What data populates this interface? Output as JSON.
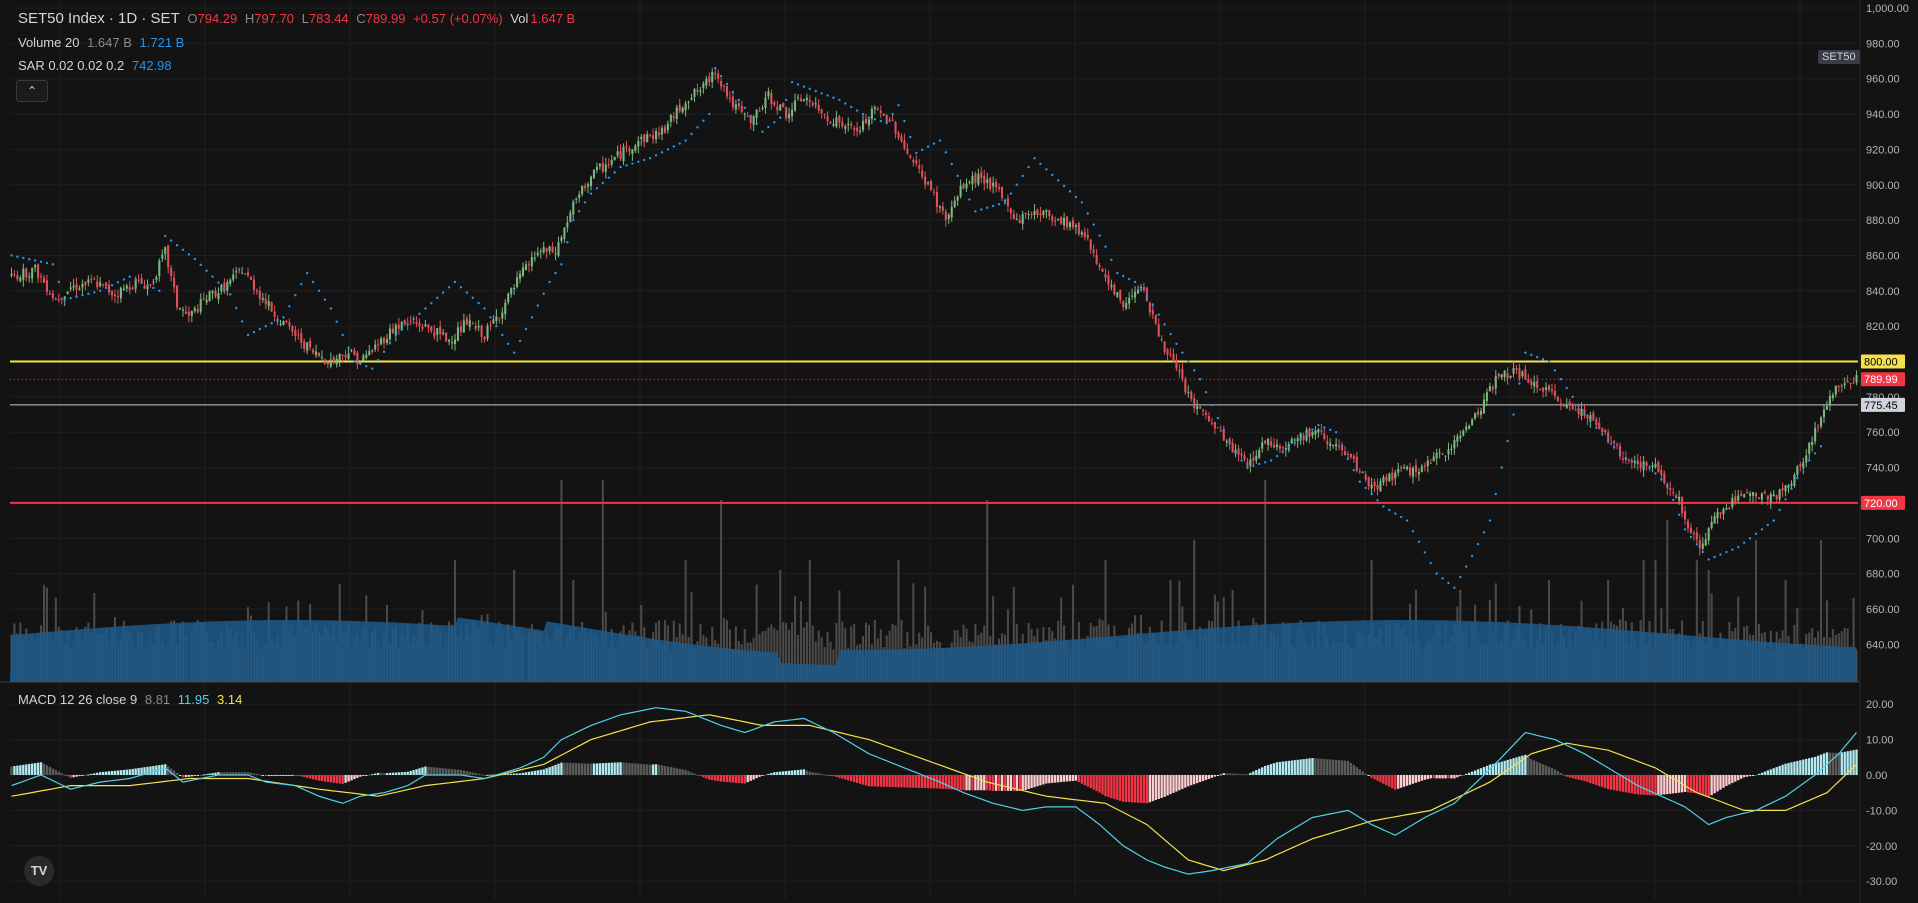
{
  "header": {
    "symbol": "SET50 Index · 1D · SET",
    "o_label": "O",
    "o_value": "794.29",
    "h_label": "H",
    "h_value": "797.70",
    "l_label": "L",
    "l_value": "783.44",
    "c_label": "C",
    "c_value": "789.99",
    "change": "+0.57 (+0.07%)",
    "vol_label": "Vol",
    "vol_value": "1.647 B"
  },
  "volume_legend": {
    "label": "Volume 20",
    "v1": "1.647 B",
    "v2": "1.721 B"
  },
  "sar_legend": {
    "label": "SAR 0.02 0.02 0.2",
    "value": "742.98"
  },
  "macd_legend": {
    "label": "MACD 12 26 close 9",
    "hist": "8.81",
    "macd": "11.95",
    "signal": "3.14"
  },
  "collapse_glyph": "⌃",
  "symbol_tag": "SET50",
  "logo_text": "TV",
  "colors": {
    "background": "#131313",
    "grid": "#1f1f1f",
    "up": "#26a69a",
    "down": "#f23645",
    "candle_up": "#7cb87f",
    "candle_down": "#e0525b",
    "sar": "#2196f3",
    "volume_bar": "#4a4a4a",
    "volume_ma": "#1f5a8a",
    "line_800": "#f5e24a",
    "line_720": "#f23645",
    "line_775": "#c9c9c9",
    "macd_line": "#4fd1e6",
    "signal_line": "#f5e24a"
  },
  "price_axis": {
    "ticks": [
      "1,000.00",
      "980.00",
      "960.00",
      "940.00",
      "920.00",
      "900.00",
      "880.00",
      "860.00",
      "840.00",
      "820.00",
      "800.00",
      "780.00",
      "760.00",
      "740.00",
      "720.00",
      "700.00",
      "680.00",
      "660.00",
      "640.00"
    ],
    "markers": [
      {
        "label": "800.00",
        "value": 800,
        "color": "#f5e24a",
        "text_color": "#000"
      },
      {
        "label": "789.99",
        "value": 789.99,
        "color": "#f23645",
        "text_color": "#fff"
      },
      {
        "label": "775.45",
        "value": 775.45,
        "color": "#d1d4dc",
        "text_color": "#000"
      },
      {
        "label": "720.00",
        "value": 720,
        "color": "#f23645",
        "text_color": "#fff"
      }
    ]
  },
  "macd_axis": {
    "ticks": [
      "20.00",
      "10.00",
      "0.00",
      "-10.00",
      "-20.00",
      "-30.00"
    ]
  },
  "chart_data": {
    "type": "candlestick",
    "y_range": [
      630,
      1000
    ],
    "horizontal_lines": [
      800,
      775.45,
      720
    ],
    "last_close": 789.99,
    "price_anchors": [
      [
        0,
        848
      ],
      [
        8,
        852
      ],
      [
        15,
        835
      ],
      [
        20,
        842
      ],
      [
        28,
        845
      ],
      [
        35,
        838
      ],
      [
        42,
        845
      ],
      [
        47,
        843
      ],
      [
        52,
        862
      ],
      [
        56,
        832
      ],
      [
        60,
        825
      ],
      [
        66,
        836
      ],
      [
        72,
        842
      ],
      [
        78,
        852
      ],
      [
        84,
        838
      ],
      [
        90,
        825
      ],
      [
        96,
        815
      ],
      [
        102,
        805
      ],
      [
        108,
        800
      ],
      [
        114,
        806
      ],
      [
        118,
        800
      ],
      [
        124,
        810
      ],
      [
        130,
        820
      ],
      [
        136,
        822
      ],
      [
        142,
        818
      ],
      [
        148,
        812
      ],
      [
        154,
        822
      ],
      [
        160,
        815
      ],
      [
        166,
        830
      ],
      [
        172,
        848
      ],
      [
        178,
        862
      ],
      [
        184,
        862
      ],
      [
        190,
        888
      ],
      [
        196,
        905
      ],
      [
        204,
        915
      ],
      [
        212,
        925
      ],
      [
        220,
        930
      ],
      [
        228,
        948
      ],
      [
        234,
        955
      ],
      [
        238,
        965
      ],
      [
        244,
        945
      ],
      [
        250,
        935
      ],
      [
        256,
        950
      ],
      [
        262,
        940
      ],
      [
        268,
        950
      ],
      [
        274,
        940
      ],
      [
        280,
        935
      ],
      [
        286,
        930
      ],
      [
        292,
        942
      ],
      [
        298,
        935
      ],
      [
        304,
        915
      ],
      [
        310,
        900
      ],
      [
        316,
        880
      ],
      [
        322,
        900
      ],
      [
        328,
        905
      ],
      [
        334,
        895
      ],
      [
        340,
        880
      ],
      [
        346,
        885
      ],
      [
        352,
        882
      ],
      [
        358,
        878
      ],
      [
        364,
        870
      ],
      [
        370,
        845
      ],
      [
        376,
        832
      ],
      [
        382,
        845
      ],
      [
        388,
        815
      ],
      [
        394,
        795
      ],
      [
        400,
        775
      ],
      [
        406,
        765
      ],
      [
        412,
        752
      ],
      [
        418,
        742
      ],
      [
        424,
        755
      ],
      [
        430,
        752
      ],
      [
        436,
        758
      ],
      [
        442,
        760
      ],
      [
        448,
        752
      ],
      [
        454,
        742
      ],
      [
        460,
        728
      ],
      [
        466,
        735
      ],
      [
        472,
        738
      ],
      [
        478,
        740
      ],
      [
        484,
        748
      ],
      [
        490,
        758
      ],
      [
        496,
        772
      ],
      [
        502,
        790
      ],
      [
        508,
        795
      ],
      [
        514,
        788
      ],
      [
        520,
        782
      ],
      [
        526,
        775
      ],
      [
        532,
        772
      ],
      [
        538,
        760
      ],
      [
        544,
        748
      ],
      [
        550,
        742
      ],
      [
        556,
        740
      ],
      [
        560,
        730
      ],
      [
        564,
        722
      ],
      [
        568,
        702
      ],
      [
        572,
        695
      ],
      [
        576,
        712
      ],
      [
        580,
        718
      ],
      [
        584,
        722
      ],
      [
        588,
        728
      ],
      [
        592,
        725
      ],
      [
        596,
        722
      ],
      [
        600,
        728
      ],
      [
        604,
        738
      ],
      [
        608,
        752
      ],
      [
        612,
        768
      ],
      [
        616,
        783
      ],
      [
        620,
        790
      ]
    ],
    "sar_anchors": [
      [
        0,
        860
      ],
      [
        14,
        855
      ],
      [
        18,
        835
      ],
      [
        30,
        840
      ],
      [
        40,
        848
      ],
      [
        50,
        840
      ],
      [
        52,
        871
      ],
      [
        62,
        858
      ],
      [
        74,
        838
      ],
      [
        80,
        815
      ],
      [
        92,
        825
      ],
      [
        100,
        850
      ],
      [
        108,
        830
      ],
      [
        116,
        800
      ],
      [
        122,
        796
      ],
      [
        130,
        815
      ],
      [
        140,
        830
      ],
      [
        150,
        845
      ],
      [
        160,
        830
      ],
      [
        170,
        805
      ],
      [
        176,
        825
      ],
      [
        182,
        845
      ],
      [
        186,
        855
      ],
      [
        190,
        880
      ],
      [
        196,
        895
      ],
      [
        206,
        910
      ],
      [
        216,
        915
      ],
      [
        228,
        925
      ],
      [
        236,
        940
      ],
      [
        238,
        966
      ],
      [
        246,
        948
      ],
      [
        254,
        930
      ],
      [
        260,
        938
      ],
      [
        264,
        958
      ],
      [
        280,
        948
      ],
      [
        290,
        938
      ],
      [
        296,
        935
      ],
      [
        300,
        945
      ],
      [
        306,
        918
      ],
      [
        314,
        925
      ],
      [
        326,
        885
      ],
      [
        336,
        890
      ],
      [
        346,
        915
      ],
      [
        362,
        890
      ],
      [
        370,
        865
      ],
      [
        374,
        850
      ],
      [
        380,
        845
      ],
      [
        386,
        832
      ],
      [
        394,
        810
      ],
      [
        402,
        790
      ],
      [
        408,
        768
      ],
      [
        414,
        748
      ],
      [
        418,
        740
      ],
      [
        426,
        744
      ],
      [
        434,
        754
      ],
      [
        442,
        764
      ],
      [
        448,
        760
      ],
      [
        452,
        745
      ],
      [
        456,
        732
      ],
      [
        464,
        718
      ],
      [
        472,
        710
      ],
      [
        482,
        680
      ],
      [
        488,
        672
      ],
      [
        494,
        690
      ],
      [
        500,
        710
      ],
      [
        504,
        740
      ],
      [
        508,
        770
      ],
      [
        512,
        805
      ],
      [
        520,
        800
      ],
      [
        532,
        770
      ],
      [
        540,
        755
      ],
      [
        546,
        745
      ],
      [
        554,
        740
      ],
      [
        560,
        730
      ],
      [
        566,
        705
      ],
      [
        574,
        688
      ],
      [
        584,
        695
      ],
      [
        596,
        710
      ],
      [
        606,
        740
      ],
      [
        612,
        752
      ]
    ],
    "volume_peaks": [
      [
        60,
        730
      ],
      [
        150,
        560
      ],
      [
        170,
        570
      ],
      [
        174,
        740
      ],
      [
        186,
        480
      ],
      [
        190,
        580
      ],
      [
        200,
        480
      ],
      [
        228,
        560
      ],
      [
        240,
        500
      ],
      [
        260,
        570
      ],
      [
        270,
        560
      ],
      [
        300,
        560
      ],
      [
        330,
        500
      ],
      [
        370,
        560
      ],
      [
        392,
        580
      ],
      [
        400,
        540
      ],
      [
        410,
        560
      ],
      [
        424,
        480
      ],
      [
        460,
        560
      ],
      [
        490,
        590
      ],
      [
        500,
        600
      ],
      [
        520,
        580
      ],
      [
        540,
        580
      ],
      [
        552,
        560
      ],
      [
        556,
        560
      ],
      [
        560,
        520
      ],
      [
        570,
        560
      ],
      [
        574,
        570
      ],
      [
        590,
        540
      ],
      [
        600,
        580
      ],
      [
        612,
        540
      ]
    ],
    "macd_anchors": [
      [
        0,
        -3
      ],
      [
        10,
        0
      ],
      [
        20,
        -4
      ],
      [
        30,
        -2
      ],
      [
        40,
        -1
      ],
      [
        52,
        2
      ],
      [
        58,
        -2
      ],
      [
        70,
        0
      ],
      [
        80,
        0
      ],
      [
        86,
        -2
      ],
      [
        96,
        -3
      ],
      [
        104,
        -6
      ],
      [
        112,
        -8
      ],
      [
        118,
        -6
      ],
      [
        126,
        -5
      ],
      [
        134,
        -3
      ],
      [
        140,
        0
      ],
      [
        152,
        0
      ],
      [
        160,
        -1
      ],
      [
        172,
        2
      ],
      [
        180,
        5
      ],
      [
        186,
        10
      ],
      [
        196,
        14
      ],
      [
        206,
        17
      ],
      [
        218,
        19
      ],
      [
        228,
        18
      ],
      [
        240,
        14
      ],
      [
        248,
        12
      ],
      [
        258,
        15
      ],
      [
        268,
        16
      ],
      [
        278,
        12
      ],
      [
        290,
        6
      ],
      [
        302,
        2
      ],
      [
        314,
        -2
      ],
      [
        322,
        -5
      ],
      [
        332,
        -8
      ],
      [
        342,
        -10
      ],
      [
        350,
        -9
      ],
      [
        360,
        -9
      ],
      [
        368,
        -14
      ],
      [
        376,
        -20
      ],
      [
        384,
        -24
      ],
      [
        390,
        -26
      ],
      [
        398,
        -28
      ],
      [
        406,
        -27
      ],
      [
        418,
        -25
      ],
      [
        428,
        -18
      ],
      [
        440,
        -12
      ],
      [
        452,
        -10
      ],
      [
        460,
        -14
      ],
      [
        468,
        -17
      ],
      [
        478,
        -12
      ],
      [
        488,
        -8
      ],
      [
        498,
        0
      ],
      [
        504,
        5
      ],
      [
        512,
        12
      ],
      [
        522,
        10
      ],
      [
        532,
        6
      ],
      [
        540,
        2
      ],
      [
        550,
        -3
      ],
      [
        558,
        -6
      ],
      [
        566,
        -9
      ],
      [
        574,
        -14
      ],
      [
        580,
        -12
      ],
      [
        590,
        -10
      ],
      [
        600,
        -6
      ],
      [
        610,
        0
      ],
      [
        618,
        6
      ],
      [
        624,
        12
      ]
    ],
    "signal_anchors": [
      [
        0,
        -6
      ],
      [
        20,
        -3
      ],
      [
        40,
        -3
      ],
      [
        60,
        -1
      ],
      [
        80,
        -1
      ],
      [
        104,
        -4
      ],
      [
        124,
        -6
      ],
      [
        140,
        -3
      ],
      [
        160,
        -1
      ],
      [
        180,
        3
      ],
      [
        196,
        10
      ],
      [
        216,
        15
      ],
      [
        236,
        17
      ],
      [
        254,
        14
      ],
      [
        270,
        14
      ],
      [
        290,
        10
      ],
      [
        310,
        4
      ],
      [
        330,
        -2
      ],
      [
        350,
        -6
      ],
      [
        370,
        -8
      ],
      [
        384,
        -14
      ],
      [
        398,
        -24
      ],
      [
        410,
        -27
      ],
      [
        424,
        -24
      ],
      [
        440,
        -18
      ],
      [
        460,
        -13
      ],
      [
        480,
        -10
      ],
      [
        500,
        -2
      ],
      [
        514,
        6
      ],
      [
        526,
        9
      ],
      [
        540,
        7
      ],
      [
        556,
        2
      ],
      [
        570,
        -5
      ],
      [
        586,
        -10
      ],
      [
        600,
        -10
      ],
      [
        614,
        -5
      ],
      [
        624,
        3
      ]
    ]
  }
}
